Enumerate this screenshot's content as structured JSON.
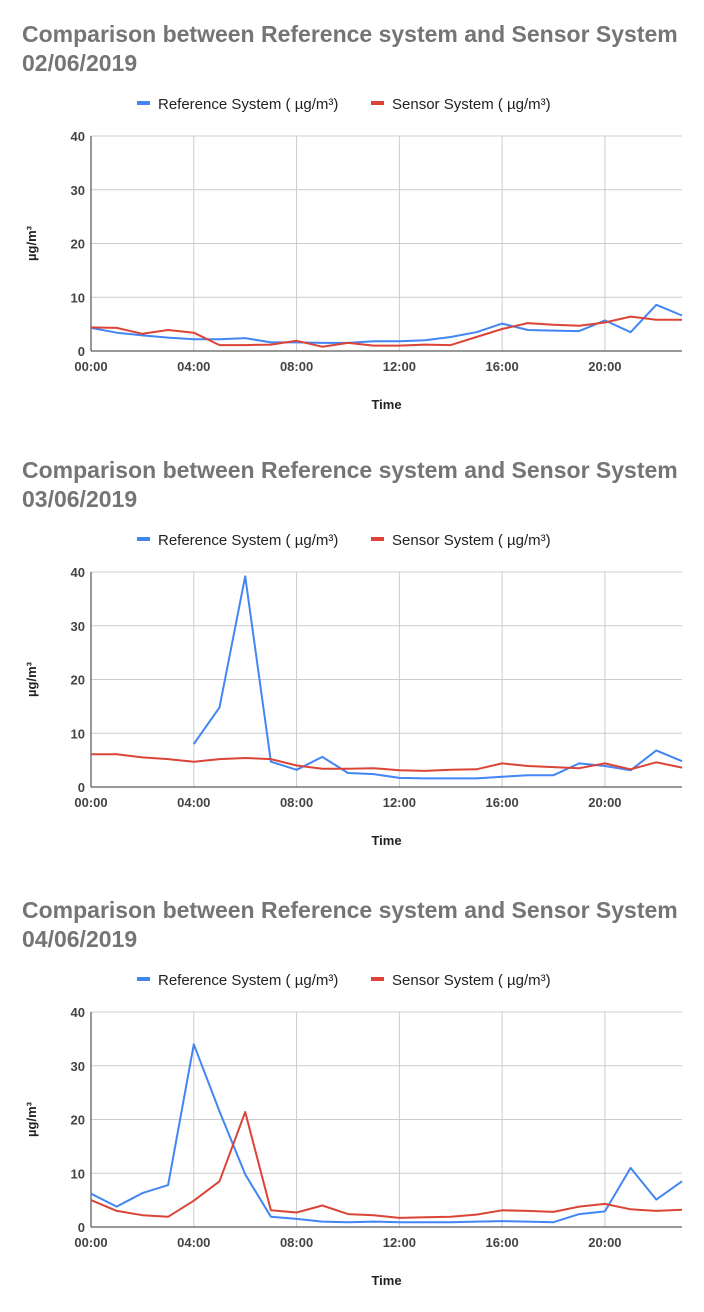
{
  "colors": {
    "reference": "#4285f4",
    "sensor": "#db4437",
    "grid": "#cccccc",
    "axis": "#333333"
  },
  "chart_data": [
    {
      "type": "line",
      "title": "Comparison between  Reference system and Sensor System 02/06/2019",
      "xlabel": "Time",
      "ylabel": "µg/m³",
      "x": [
        0,
        1,
        2,
        3,
        4,
        5,
        6,
        7,
        8,
        9,
        10,
        11,
        12,
        13,
        14,
        15,
        16,
        17,
        18,
        19,
        20,
        21,
        22,
        23
      ],
      "x_ticks": [
        "00:00",
        "04:00",
        "08:00",
        "12:00",
        "16:00",
        "20:00"
      ],
      "y_ticks": [
        0,
        10,
        20,
        30,
        40
      ],
      "ylim": [
        0,
        40
      ],
      "xlim": [
        0,
        23
      ],
      "grid": true,
      "legend_position": "top",
      "series": [
        {
          "name": "Reference System ( µg/m³)",
          "color_key": "reference",
          "values": [
            4.3,
            3.4,
            2.9,
            2.5,
            2.2,
            2.2,
            2.4,
            1.6,
            1.6,
            1.5,
            1.5,
            1.8,
            1.8,
            2.0,
            2.6,
            3.5,
            5.1,
            3.9,
            3.8,
            3.7,
            5.7,
            3.5,
            8.6,
            6.6
          ]
        },
        {
          "name": "Sensor System ( µg/m³)",
          "color_key": "sensor",
          "values": [
            4.4,
            4.3,
            3.2,
            3.9,
            3.4,
            1.1,
            1.1,
            1.2,
            1.9,
            0.8,
            1.5,
            1.0,
            1.0,
            1.2,
            1.1,
            2.6,
            4.1,
            5.2,
            4.9,
            4.7,
            5.3,
            6.4,
            5.8,
            5.8
          ]
        }
      ]
    },
    {
      "type": "line",
      "title": "Comparison between  Reference system and Sensor System 03/06/2019",
      "xlabel": "Time",
      "ylabel": "µg/m³",
      "x": [
        0,
        1,
        2,
        3,
        4,
        5,
        6,
        7,
        8,
        9,
        10,
        11,
        12,
        13,
        14,
        15,
        16,
        17,
        18,
        19,
        20,
        21,
        22,
        23
      ],
      "x_ticks": [
        "00:00",
        "04:00",
        "08:00",
        "12:00",
        "16:00",
        "20:00"
      ],
      "y_ticks": [
        0,
        10,
        20,
        30,
        40
      ],
      "ylim": [
        0,
        40
      ],
      "xlim": [
        0,
        23
      ],
      "grid": true,
      "legend_position": "top",
      "series": [
        {
          "name": "Reference System ( µg/m³)",
          "color_key": "reference",
          "values": [
            null,
            null,
            null,
            null,
            8.0,
            14.8,
            39.2,
            4.7,
            3.2,
            5.6,
            2.6,
            2.4,
            1.7,
            1.6,
            1.6,
            1.6,
            1.9,
            2.2,
            2.2,
            4.4,
            3.9,
            3.1,
            6.8,
            4.8
          ]
        },
        {
          "name": "Sensor System ( µg/m³)",
          "color_key": "sensor",
          "values": [
            6.1,
            6.1,
            5.5,
            5.2,
            4.7,
            5.2,
            5.4,
            5.2,
            4.0,
            3.4,
            3.4,
            3.5,
            3.1,
            3.0,
            3.2,
            3.3,
            4.4,
            3.9,
            3.7,
            3.5,
            4.4,
            3.3,
            4.6,
            3.6
          ]
        }
      ]
    },
    {
      "type": "line",
      "title": "Comparison between  Reference system and Sensor System 04/06/2019",
      "xlabel": "Time",
      "ylabel": "µg/m³",
      "x": [
        0,
        1,
        2,
        3,
        4,
        5,
        6,
        7,
        8,
        9,
        10,
        11,
        12,
        13,
        14,
        15,
        16,
        17,
        18,
        19,
        20,
        21,
        22,
        23
      ],
      "x_ticks": [
        "00:00",
        "04:00",
        "08:00",
        "12:00",
        "16:00",
        "20:00"
      ],
      "y_ticks": [
        0,
        10,
        20,
        30,
        40
      ],
      "ylim": [
        0,
        40
      ],
      "xlim": [
        0,
        23
      ],
      "grid": true,
      "legend_position": "top",
      "series": [
        {
          "name": "Reference System ( µg/m³)",
          "color_key": "reference",
          "values": [
            6.2,
            3.8,
            6.3,
            7.8,
            34.0,
            21.5,
            9.8,
            1.9,
            1.5,
            1.0,
            0.9,
            1.0,
            0.9,
            0.9,
            0.9,
            1.0,
            1.1,
            1.0,
            0.9,
            2.4,
            2.9,
            11.0,
            5.1,
            8.5
          ]
        },
        {
          "name": "Sensor System ( µg/m³)",
          "color_key": "sensor",
          "values": [
            5.0,
            3.0,
            2.2,
            1.9,
            4.9,
            8.5,
            21.4,
            3.1,
            2.7,
            4.0,
            2.4,
            2.2,
            1.7,
            1.8,
            1.9,
            2.3,
            3.1,
            3.0,
            2.8,
            3.8,
            4.3,
            3.3,
            3.0,
            3.2
          ]
        }
      ]
    }
  ]
}
